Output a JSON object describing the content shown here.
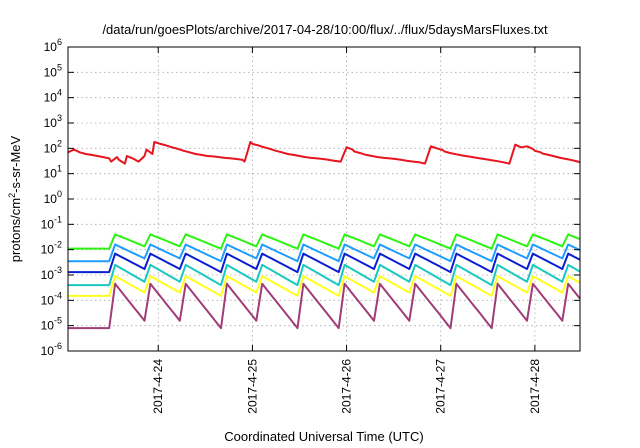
{
  "chart_data": {
    "type": "line",
    "title": "/data/run/goesPlots/archive/2017-04-28/10:00/flux/../flux/5daysMarsFluxes.txt",
    "xlabel": "Coordinated Universal Time (UTC)",
    "ylabel": "protons/cm2-s-sr-MeV",
    "ylabel_base": "protons/cm",
    "ylabel_sup": "2",
    "ylabel_rest": "-s-sr-MeV",
    "y_scale": "log",
    "ylim": [
      1e-06,
      1000000.0
    ],
    "y_tick_exponents": [
      -6,
      -5,
      -4,
      -3,
      -2,
      -1,
      0,
      1,
      2,
      3,
      4,
      5,
      6
    ],
    "y_tick_base": "10",
    "xlim": [
      "2017-04-23T01:00",
      "2017-04-28T11:30"
    ],
    "x_ticks": [
      "2017-4-24",
      "2017-4-25",
      "2017-4-26",
      "2017-4-27",
      "2017-4-28"
    ],
    "grid": true,
    "legend": "none",
    "series": [
      {
        "color": "#e8141e",
        "x": [
          "2017-04-23T01:00",
          "2017-04-23T02:30",
          "2017-04-23T04:00",
          "2017-04-23T05:30",
          "2017-04-23T07:00",
          "2017-04-23T08:30",
          "2017-04-23T10:00",
          "2017-04-23T11:30",
          "2017-04-23T12:00",
          "2017-04-23T13:30",
          "2017-04-23T14:00",
          "2017-04-23T15:30",
          "2017-04-23T16:00",
          "2017-04-23T17:30",
          "2017-04-23T19:00",
          "2017-04-23T20:30",
          "2017-04-23T21:00",
          "2017-04-23T22:30",
          "2017-04-23T23:00",
          "2017-04-24T00:30",
          "2017-04-24T02:00",
          "2017-04-24T03:30",
          "2017-04-24T05:00",
          "2017-04-24T06:30",
          "2017-04-24T08:00",
          "2017-04-24T09:30",
          "2017-04-24T11:00",
          "2017-04-24T12:30",
          "2017-04-24T14:00",
          "2017-04-24T15:30",
          "2017-04-24T17:00",
          "2017-04-24T18:30",
          "2017-04-24T20:00",
          "2017-04-24T21:30",
          "2017-04-24T22:00",
          "2017-04-24T23:30",
          "2017-04-25T00:00",
          "2017-04-25T01:30",
          "2017-04-25T03:00",
          "2017-04-25T04:30",
          "2017-04-25T06:00",
          "2017-04-25T07:30",
          "2017-04-25T09:00",
          "2017-04-25T10:30",
          "2017-04-25T12:00",
          "2017-04-25T13:30",
          "2017-04-25T15:00",
          "2017-04-25T16:30",
          "2017-04-25T18:00",
          "2017-04-25T19:30",
          "2017-04-25T21:00",
          "2017-04-25T22:30",
          "2017-04-26T00:00",
          "2017-04-26T01:30",
          "2017-04-26T02:00",
          "2017-04-26T03:30",
          "2017-04-26T05:00",
          "2017-04-26T06:30",
          "2017-04-26T08:00",
          "2017-04-26T09:30",
          "2017-04-26T11:00",
          "2017-04-26T12:30",
          "2017-04-26T14:00",
          "2017-04-26T15:30",
          "2017-04-26T17:00",
          "2017-04-26T18:30",
          "2017-04-26T20:00",
          "2017-04-26T21:30",
          "2017-04-26T23:00",
          "2017-04-27T00:30",
          "2017-04-27T01:00",
          "2017-04-27T02:30",
          "2017-04-27T04:00",
          "2017-04-27T05:30",
          "2017-04-27T07:00",
          "2017-04-27T08:30",
          "2017-04-27T10:00",
          "2017-04-27T11:30",
          "2017-04-27T13:00",
          "2017-04-27T14:30",
          "2017-04-27T16:00",
          "2017-04-27T17:30",
          "2017-04-27T19:00",
          "2017-04-27T20:30",
          "2017-04-27T22:00",
          "2017-04-27T23:30",
          "2017-04-28T00:00",
          "2017-04-28T01:30",
          "2017-04-28T02:00",
          "2017-04-28T03:30",
          "2017-04-28T05:00",
          "2017-04-28T06:30",
          "2017-04-28T08:00",
          "2017-04-28T09:30",
          "2017-04-28T11:00",
          "2017-04-28T11:30"
        ],
        "y": [
          70,
          90,
          70,
          60,
          55,
          50,
          45,
          40,
          30,
          45,
          35,
          25,
          50,
          40,
          30,
          50,
          90,
          60,
          180,
          150,
          130,
          110,
          95,
          80,
          70,
          60,
          55,
          50,
          48,
          45,
          42,
          40,
          38,
          35,
          30,
          180,
          150,
          130,
          110,
          95,
          80,
          70,
          60,
          55,
          50,
          45,
          42,
          40,
          38,
          35,
          32,
          30,
          110,
          90,
          75,
          65,
          55,
          50,
          45,
          42,
          40,
          38,
          35,
          32,
          30,
          28,
          25,
          120,
          100,
          85,
          75,
          65,
          58,
          52,
          48,
          44,
          40,
          37,
          34,
          31,
          28,
          25,
          140,
          110,
          120,
          95,
          80,
          70,
          62,
          55,
          48,
          42,
          38,
          34,
          30,
          28
        ]
      },
      {
        "color": "#2bf50f",
        "x_start": "2017-04-23T01:00",
        "x_step_hours": 1.5,
        "lo": 0.011,
        "hi": 0.04,
        "peaks": [
          8,
          14,
          20,
          27,
          33,
          40,
          47,
          53,
          59,
          66,
          73,
          79,
          85
        ],
        "note": ""
      },
      {
        "color": "#1f9cff",
        "x_start": "2017-04-23T01:00",
        "x_step_hours": 1.5,
        "lo": 0.0035,
        "hi": 0.016,
        "peaks": [
          8,
          14,
          20,
          27,
          33,
          40,
          47,
          53,
          59,
          66,
          73,
          79,
          85
        ],
        "note": ""
      },
      {
        "color": "#0a1ed2",
        "x_start": "2017-04-23T01:00",
        "x_step_hours": 1.5,
        "lo": 0.0013,
        "hi": 0.007,
        "peaks": [
          8,
          14,
          20,
          27,
          33,
          40,
          47,
          53,
          59,
          66,
          73,
          79,
          85
        ],
        "note": ""
      },
      {
        "color": "#19c8c0",
        "x_start": "2017-04-23T01:00",
        "x_step_hours": 1.5,
        "lo": 0.0004,
        "hi": 0.0025,
        "peaks": [
          8,
          14,
          20,
          27,
          33,
          40,
          47,
          53,
          59,
          66,
          73,
          79,
          85
        ],
        "note": ""
      },
      {
        "color": "#ffff1e",
        "x_start": "2017-04-23T01:00",
        "x_step_hours": 1.5,
        "lo": 0.00015,
        "hi": 0.0009,
        "peaks": [
          8,
          14,
          20,
          27,
          33,
          40,
          47,
          53,
          59,
          66,
          73,
          79,
          85
        ],
        "note": ""
      },
      {
        "color": "#a03c78",
        "x_start": "2017-04-23T01:00",
        "x_step_hours": 1.5,
        "lo": 8e-06,
        "hi": 0.00045,
        "peaks": [
          8,
          14,
          20,
          27,
          33,
          40,
          47,
          53,
          59,
          66,
          73,
          79,
          85
        ],
        "note": ""
      }
    ]
  }
}
